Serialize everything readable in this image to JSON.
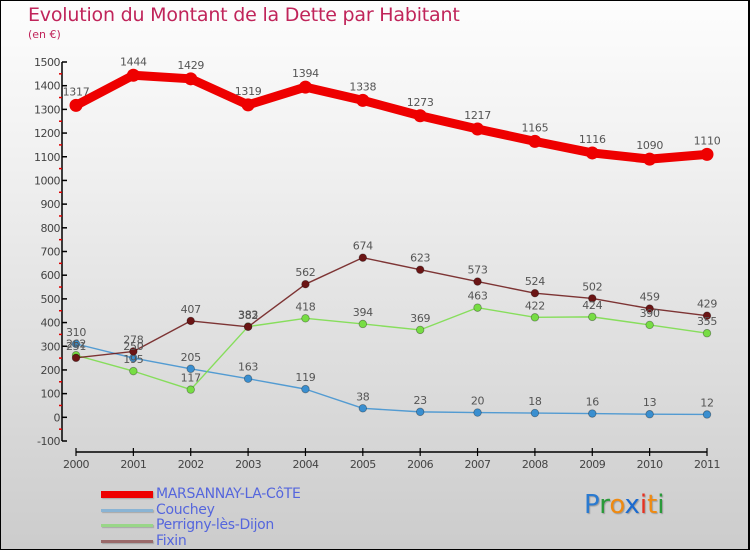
{
  "chart_data": {
    "type": "line",
    "title": "Evolution du Montant de la Dette par Habitant",
    "subtitle": "(en €)",
    "xlabel": "",
    "ylabel": "",
    "ylim": [
      -100,
      1500
    ],
    "yticks": [
      -100,
      0,
      100,
      200,
      300,
      400,
      500,
      600,
      700,
      800,
      900,
      1000,
      1100,
      1200,
      1300,
      1400,
      1500
    ],
    "ytick_labels": [
      "-100",
      "0",
      "100",
      "200",
      "300",
      "400",
      "500",
      "600",
      "700",
      "800",
      "900",
      "1000",
      "1100",
      "1200",
      "1300",
      "1400",
      "1500"
    ],
    "x": [
      "2000",
      "2001",
      "2002",
      "2003",
      "2004",
      "2005",
      "2006",
      "2007",
      "2008",
      "2009",
      "2010",
      "2011"
    ],
    "grid": false,
    "legend_position": "bottom-left",
    "series": [
      {
        "name": "MARSANNAY-LA-CôTE",
        "color": "#ee0000",
        "values": [
          1317,
          1444,
          1429,
          1319,
          1394,
          1338,
          1273,
          1217,
          1165,
          1116,
          1090,
          1110
        ]
      },
      {
        "name": "Couchey",
        "color": "#3a8fd0",
        "values": [
          310,
          250,
          205,
          163,
          119,
          38,
          23,
          20,
          18,
          16,
          13,
          12
        ]
      },
      {
        "name": "Perrigny-lès-Dijon",
        "color": "#77dd44",
        "values": [
          262,
          195,
          117,
          383,
          418,
          394,
          369,
          463,
          422,
          424,
          390,
          355
        ]
      },
      {
        "name": "Fixin",
        "color": "#6b1515",
        "values": [
          251,
          278,
          407,
          382,
          562,
          674,
          623,
          573,
          524,
          502,
          459,
          429
        ]
      }
    ]
  },
  "legend": {
    "items": [
      {
        "label": "MARSANNAY-LA-CôTE",
        "color": "#ee0000"
      },
      {
        "label": "Couchey",
        "color": "#8ab4d4"
      },
      {
        "label": "Perrigny-lès-Dijon",
        "color": "#99d688"
      },
      {
        "label": "Fixin",
        "color": "#9a6a6a"
      }
    ]
  },
  "logo": {
    "letters": [
      {
        "ch": "P",
        "color": "#2a7ad0"
      },
      {
        "ch": "r",
        "color": "#2a9a3a"
      },
      {
        "ch": "o",
        "color": "#f08a10"
      },
      {
        "ch": "x",
        "color": "#1a6ad0"
      },
      {
        "ch": "i",
        "color": "#e83020"
      },
      {
        "ch": "t",
        "color": "#f08a10"
      },
      {
        "ch": "i",
        "color": "#2a9a3a"
      }
    ]
  }
}
